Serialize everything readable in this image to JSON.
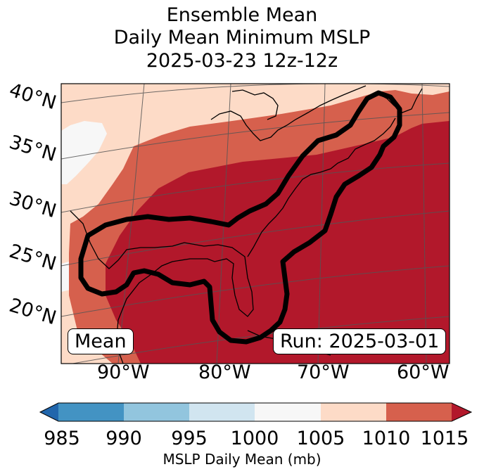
{
  "title": {
    "line1": "Ensemble Mean",
    "line2": "Daily Mean Minimum MSLP",
    "line3": "2025-03-23 12z-12z"
  },
  "map": {
    "lat_labels": [
      "40°N",
      "35°N",
      "30°N",
      "25°N",
      "20°N"
    ],
    "lon_labels": [
      "90°W",
      "80°W",
      "70°W",
      "60°W"
    ],
    "mean_label": "Mean",
    "run_label": "Run: 2025-03-01",
    "fill_colors": {
      "1000-1005": "#f7f7f7",
      "1005-1010": "#fddbc7",
      "1010-1015": "#d6604d",
      "1015+": "#b2182b"
    }
  },
  "colorbar": {
    "ticks": [
      "985",
      "990",
      "995",
      "1000",
      "1005",
      "1010",
      "1015"
    ],
    "colors": [
      "#2166ac",
      "#4393c3",
      "#92c5de",
      "#d1e5f0",
      "#f7f7f7",
      "#fddbc7",
      "#d6604d",
      "#b2182b"
    ],
    "label": "MSLP Daily Mean (mb)"
  }
}
